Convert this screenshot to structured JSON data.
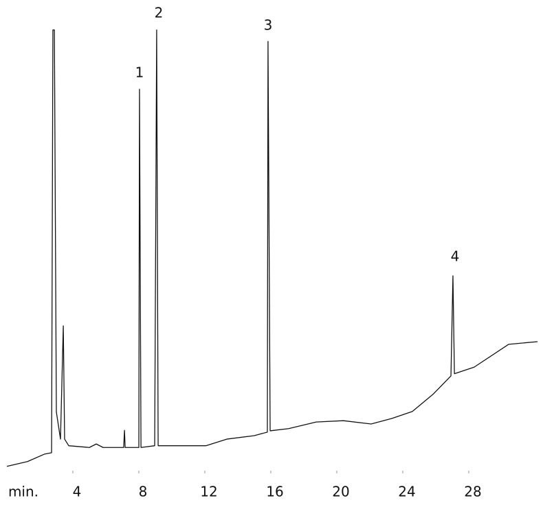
{
  "chart_data": {
    "type": "line",
    "x_label": "min.",
    "annotations": [
      "1",
      "2",
      "3",
      "4"
    ],
    "xlim": [
      0,
      32.2
    ],
    "ylim": [
      0,
      102
    ],
    "xticks": [
      4,
      8,
      12,
      16,
      20,
      24,
      28
    ],
    "color": "#111111",
    "x": [
      0,
      1.25,
      2.29,
      2.71,
      2.79,
      2.88,
      3.0,
      3.25,
      3.42,
      3.5,
      3.75,
      5.0,
      5.42,
      5.83,
      7.08,
      7.13,
      7.17,
      8.0,
      8.04,
      8.13,
      8.96,
      9.08,
      9.17,
      10.42,
      12.08,
      13.33,
      15.0,
      15.79,
      15.83,
      15.96,
      17.08,
      18.75,
      20.4,
      22.08,
      23.33,
      24.58,
      25.83,
      26.92,
      27.04,
      27.13,
      28.33,
      30.42,
      32.17
    ],
    "values": [
      1.6,
      2.7,
      4.4,
      4.7,
      101,
      101,
      14,
      7.8,
      33.6,
      7.8,
      6.3,
      5.9,
      6.7,
      5.9,
      5.9,
      9.8,
      5.9,
      5.9,
      87.5,
      5.9,
      6.3,
      101,
      6.3,
      6.3,
      6.3,
      7.8,
      8.6,
      9.4,
      98.4,
      9.7,
      10.2,
      11.7,
      12,
      11.25,
      12.5,
      14.1,
      18,
      22.2,
      45,
      22.7,
      24.2,
      29.4,
      30
    ]
  }
}
